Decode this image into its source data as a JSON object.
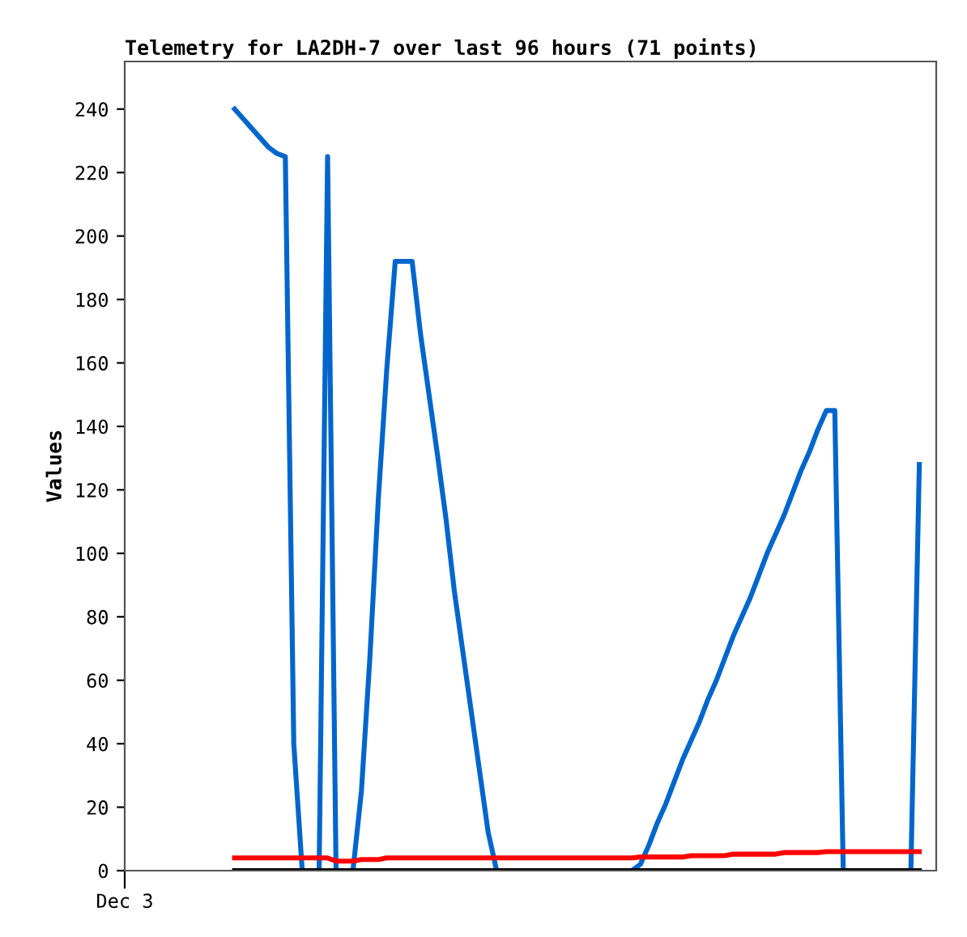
{
  "chart_data": {
    "type": "line",
    "title": "Telemetry for LA2DH-7 over last 96 hours (71 points)",
    "ylabel": "Values",
    "categories": [
      "Dec 3",
      null,
      null,
      null,
      null,
      null,
      null,
      null,
      null,
      null,
      null,
      null,
      null,
      null,
      null,
      null,
      null,
      null,
      null,
      null,
      null,
      null,
      null,
      null,
      null,
      null,
      null,
      null,
      null,
      null,
      null,
      null,
      null,
      null,
      null,
      null,
      null,
      null,
      null,
      null,
      null,
      null,
      null,
      null,
      null,
      null,
      null,
      null,
      null,
      null,
      null,
      null,
      null,
      null,
      null,
      null,
      null,
      null,
      null,
      null,
      null,
      null,
      null,
      null,
      null,
      null,
      null,
      null,
      null,
      null,
      null,
      null,
      null,
      null,
      null,
      null,
      null,
      null,
      null,
      null,
      null,
      null,
      null,
      null,
      null,
      null,
      null,
      null,
      null,
      null,
      null,
      null,
      null,
      null,
      null,
      null,
      null
    ],
    "ylim": [
      0,
      255
    ],
    "yticks": [
      0,
      20,
      40,
      60,
      80,
      100,
      120,
      140,
      160,
      180,
      200,
      220,
      240
    ],
    "marker": "none",
    "line_style": "solid",
    "series": [
      {
        "color": "#0066cc",
        "values": [
          null,
          null,
          null,
          null,
          null,
          null,
          null,
          null,
          null,
          null,
          null,
          null,
          null,
          240,
          237,
          234,
          231,
          228,
          226,
          225,
          40,
          0,
          0,
          0,
          225,
          0,
          0,
          0,
          25,
          67,
          117,
          158,
          192,
          192,
          192,
          169,
          150,
          131,
          111,
          88,
          69,
          50,
          31,
          12,
          0,
          0,
          0,
          0,
          0,
          0,
          0,
          0,
          0,
          0,
          0,
          0,
          0,
          0,
          0,
          0,
          0,
          2,
          8,
          15,
          21,
          28,
          35,
          41,
          47,
          54,
          60,
          67,
          74,
          80,
          86,
          93,
          100,
          106,
          112,
          119,
          126,
          132,
          139,
          145,
          145,
          0,
          0,
          0,
          0,
          0,
          0,
          0,
          0,
          0,
          128,
          null,
          null
        ]
      },
      {
        "color": "#ff0000",
        "values": [
          null,
          null,
          null,
          null,
          null,
          null,
          null,
          null,
          null,
          null,
          null,
          null,
          null,
          4,
          4,
          4,
          4,
          4,
          4,
          4,
          4,
          4,
          4,
          4,
          4,
          3,
          3,
          3,
          3.5,
          3.5,
          3.5,
          4,
          4,
          4,
          4,
          4,
          4,
          4,
          4,
          4,
          4,
          4,
          4,
          4,
          4,
          4,
          4,
          4,
          4,
          4,
          4,
          4,
          4,
          4,
          4,
          4,
          4,
          4,
          4,
          4,
          4,
          4.3,
          4.3,
          4.3,
          4.3,
          4.3,
          4.3,
          4.7,
          4.7,
          4.7,
          4.7,
          4.7,
          5.2,
          5.2,
          5.2,
          5.2,
          5.2,
          5.2,
          5.7,
          5.7,
          5.7,
          5.7,
          5.7,
          6,
          6,
          6,
          6,
          6,
          6,
          6,
          6,
          6,
          6,
          6,
          6,
          null,
          null
        ]
      },
      {
        "color": "#000000",
        "values": [
          null,
          null,
          null,
          null,
          null,
          null,
          null,
          null,
          null,
          null,
          null,
          null,
          null,
          0,
          0,
          0,
          0,
          0,
          0,
          0,
          0,
          0,
          0,
          0,
          0,
          0,
          0,
          0,
          0,
          0,
          0,
          0,
          0,
          0,
          0,
          0,
          0,
          0,
          0,
          0,
          0,
          0,
          0,
          0,
          0,
          0,
          0,
          0,
          0,
          0,
          0,
          0,
          0,
          0,
          0,
          0,
          0,
          0,
          0,
          0,
          0,
          0,
          0,
          0,
          0,
          0,
          0,
          0,
          0,
          0,
          0,
          0,
          0,
          0,
          0,
          0,
          0,
          0,
          0,
          0,
          0,
          0,
          0,
          0,
          0,
          0,
          0,
          0,
          0,
          0,
          0,
          0,
          0,
          0,
          0,
          null,
          null
        ]
      }
    ]
  }
}
